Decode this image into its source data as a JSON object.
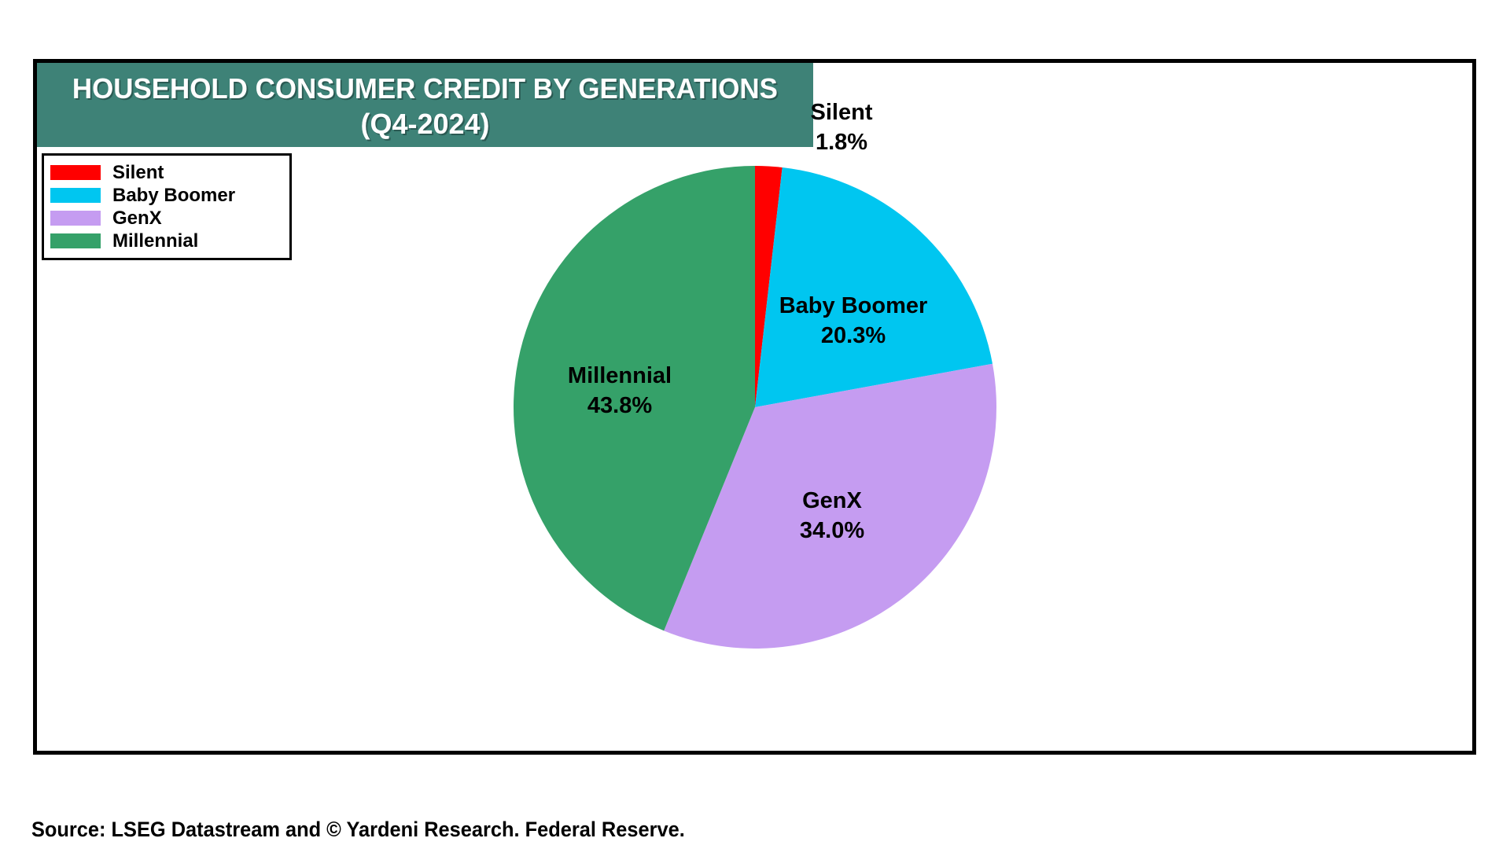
{
  "header": {
    "title_line1": "HOUSEHOLD CONSUMER CREDIT BY GENERATIONS",
    "title_line2": "(Q4-2024)",
    "banner_color": "#3E8277",
    "title_text_color": "#ffffff"
  },
  "chart_data": {
    "type": "pie",
    "title": "HOUSEHOLD CONSUMER CREDIT BY GENERATIONS (Q4-2024)",
    "categories": [
      "Silent",
      "Baby Boomer",
      "GenX",
      "Millennial"
    ],
    "values": [
      1.8,
      20.3,
      34.0,
      43.8
    ],
    "unit": "%",
    "start_angle": "12-o-clock",
    "direction": "clockwise",
    "legend_position": "top-left",
    "slices": [
      {
        "label": "Silent",
        "value": 1.8,
        "pct_label": "1.8%",
        "color": "#FF0000"
      },
      {
        "label": "Baby Boomer",
        "value": 20.3,
        "pct_label": "20.3%",
        "color": "#00C6F0"
      },
      {
        "label": "GenX",
        "value": 34.0,
        "pct_label": "34.0%",
        "color": "#C59CF1"
      },
      {
        "label": "Millennial",
        "value": 43.8,
        "pct_label": "43.8%",
        "color": "#35A169"
      }
    ]
  },
  "footer": {
    "source": "Source: LSEG Datastream and © Yardeni Research. Federal Reserve."
  }
}
